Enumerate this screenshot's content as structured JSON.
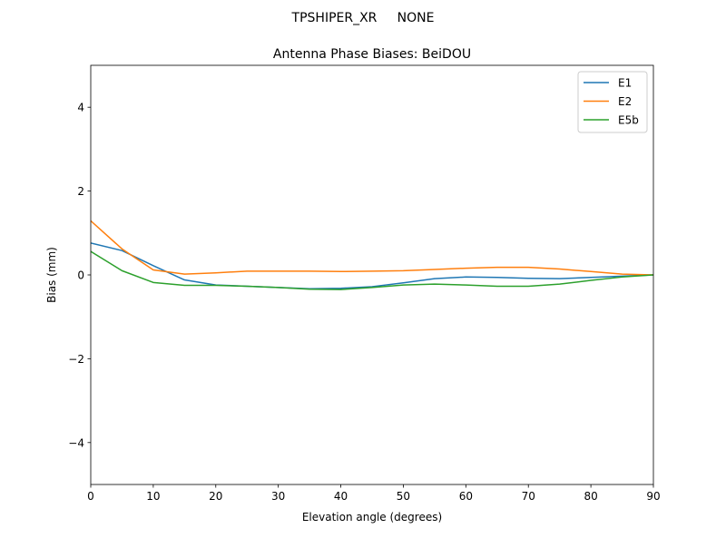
{
  "figure": {
    "suptitle": "TPSHIPER_XR     NONE"
  },
  "chart_data": {
    "type": "line",
    "title": "Antenna Phase Biases: BeiDOU",
    "xlabel": "Elevation angle (degrees)",
    "ylabel": "Bias (mm)",
    "xlim": [
      0,
      90
    ],
    "ylim": [
      -5,
      5
    ],
    "xticks": [
      0,
      10,
      20,
      30,
      40,
      50,
      60,
      70,
      80,
      90
    ],
    "yticks": [
      -4,
      -2,
      0,
      2,
      4
    ],
    "ytick_labels": [
      "−4",
      "−2",
      "0",
      "2",
      "4"
    ],
    "grid": false,
    "legend_position": "top-right",
    "x": [
      0,
      5,
      10,
      15,
      20,
      25,
      30,
      35,
      40,
      45,
      50,
      55,
      60,
      65,
      70,
      75,
      80,
      85,
      90
    ],
    "series": [
      {
        "name": "E1",
        "color": "#1f77b4",
        "values": [
          0.76,
          0.58,
          0.22,
          -0.12,
          -0.24,
          -0.27,
          -0.3,
          -0.33,
          -0.32,
          -0.28,
          -0.19,
          -0.09,
          -0.05,
          -0.06,
          -0.08,
          -0.09,
          -0.06,
          -0.03,
          0.0
        ]
      },
      {
        "name": "E2",
        "color": "#ff7f0e",
        "values": [
          1.29,
          0.62,
          0.12,
          0.02,
          0.05,
          0.09,
          0.09,
          0.09,
          0.08,
          0.09,
          0.1,
          0.13,
          0.16,
          0.18,
          0.18,
          0.14,
          0.08,
          0.02,
          0.0
        ]
      },
      {
        "name": "E5b",
        "color": "#2ca02c",
        "values": [
          0.56,
          0.1,
          -0.18,
          -0.25,
          -0.25,
          -0.27,
          -0.3,
          -0.34,
          -0.35,
          -0.3,
          -0.24,
          -0.22,
          -0.24,
          -0.27,
          -0.27,
          -0.22,
          -0.13,
          -0.05,
          0.0
        ]
      }
    ]
  }
}
